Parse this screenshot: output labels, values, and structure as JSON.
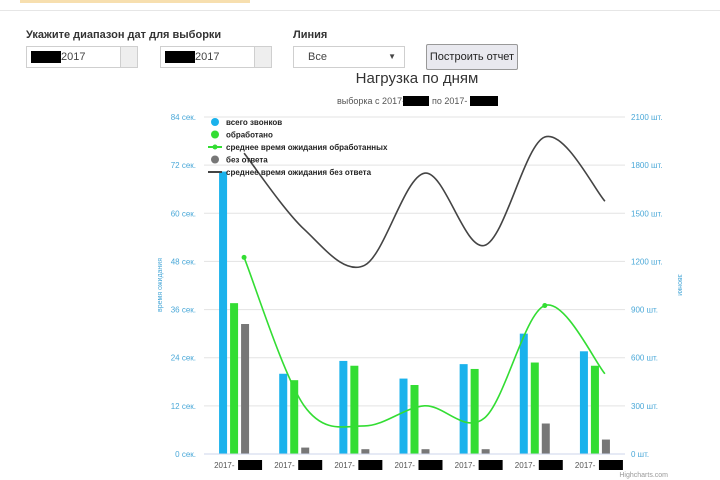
{
  "form": {
    "date_range_label": "Укажите диапазон дат для выборки",
    "date_from": "2017",
    "date_to": "2017",
    "line_label": "Линия",
    "line_selected": "Все",
    "report_button": "Построить отчет"
  },
  "chart_data": {
    "type": "bar",
    "title": "Нагрузка по дням",
    "subtitle_prefix": "выборка с 2017-",
    "subtitle_mid": "по 2017-",
    "categories": [
      "2017-",
      "2017-",
      "2017-",
      "2017-",
      "2017-",
      "2017-",
      "2017-"
    ],
    "y_left": {
      "title": "время ожидания",
      "ticks": [
        "0 сек.",
        "12 сек.",
        "24 сек.",
        "36 сек.",
        "48 сек.",
        "60 сек.",
        "72 сек.",
        "84 сек."
      ],
      "range": [
        0,
        84
      ]
    },
    "y_right": {
      "title": "звонки",
      "ticks": [
        "0 шт.",
        "300 шт.",
        "600 шт.",
        "900 шт.",
        "1200 шт.",
        "1500 шт.",
        "1800 шт.",
        "2100 шт."
      ],
      "range": [
        0,
        2100
      ]
    },
    "series": [
      {
        "name": "всего звонков",
        "kind": "bar",
        "axis": "right",
        "color": "#1ab2ec",
        "values": [
          1760,
          500,
          580,
          470,
          560,
          750,
          640
        ]
      },
      {
        "name": "обработано",
        "kind": "bar",
        "axis": "right",
        "color": "#33dd33",
        "values": [
          940,
          460,
          550,
          430,
          530,
          570,
          550
        ]
      },
      {
        "name": "среднее время ожидания обработанных",
        "kind": "line",
        "axis": "left",
        "color": "#33dd33",
        "values": [
          49,
          12,
          7,
          12,
          9,
          37,
          20
        ]
      },
      {
        "name": "без ответа",
        "kind": "bar",
        "axis": "right",
        "color": "#777777",
        "values": [
          810,
          40,
          30,
          30,
          30,
          190,
          90
        ]
      },
      {
        "name": "среднее время ожидания без ответа",
        "kind": "line",
        "axis": "left",
        "color": "#444444",
        "values": [
          75,
          56,
          47,
          70,
          52,
          79,
          63
        ]
      }
    ],
    "credits": "Highcharts.com",
    "legend_position": "top-left"
  }
}
